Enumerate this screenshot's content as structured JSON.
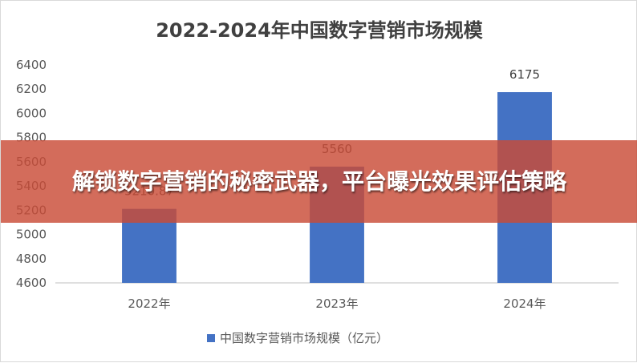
{
  "chart_data": {
    "type": "bar",
    "title": "2022-2024年中国数字营销市场规模",
    "categories": [
      "2022年",
      "2023年",
      "2024年"
    ],
    "series": [
      {
        "name": "中国数字营销市场规模（亿元）",
        "values": [
          5210.87,
          5560,
          6175
        ],
        "color": "#4472c4"
      }
    ],
    "data_labels": [
      "5210.87",
      "5560",
      "6175"
    ],
    "ylim": [
      4600,
      6400
    ],
    "yticks": [
      4600,
      4800,
      5000,
      5200,
      5400,
      5600,
      5800,
      6000,
      6200,
      6400
    ],
    "grid": false,
    "legend": "bottom"
  },
  "overlay": {
    "text": "解锁数字营销的秘密武器，平台曝光效果评估策略",
    "color": "#c94c37"
  }
}
